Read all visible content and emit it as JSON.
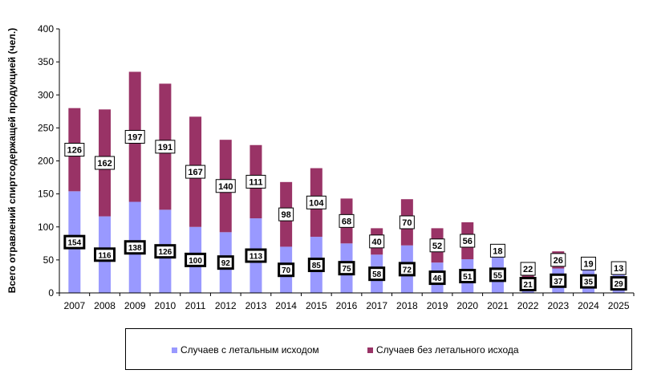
{
  "chart_data": {
    "type": "bar",
    "stacked": true,
    "ylabel": "Всего отравлений спиртсодержащей продукцией (чел.)",
    "ylim": [
      0,
      400
    ],
    "yticks": [
      0,
      50,
      100,
      150,
      200,
      250,
      300,
      350,
      400
    ],
    "grid": false,
    "legend_position": "bottom",
    "categories": [
      "2007",
      "2008",
      "2009",
      "2010",
      "2011",
      "2012",
      "2013",
      "2014",
      "2015",
      "2016",
      "2017",
      "2018",
      "2019",
      "2020",
      "2021",
      "2022",
      "2023",
      "2024",
      "2025"
    ],
    "series": [
      {
        "name": "Случаев  с летальным исходом",
        "color": "#9999ff",
        "values": [
          154,
          116,
          138,
          126,
          100,
          92,
          113,
          70,
          85,
          75,
          58,
          72,
          46,
          51,
          55,
          21,
          37,
          35,
          29
        ]
      },
      {
        "name": "Случаев  без летального исхода",
        "color": "#993366",
        "values": [
          126,
          162,
          197,
          191,
          167,
          140,
          111,
          98,
          104,
          68,
          40,
          70,
          52,
          56,
          18,
          22,
          26,
          19,
          13
        ]
      }
    ]
  }
}
